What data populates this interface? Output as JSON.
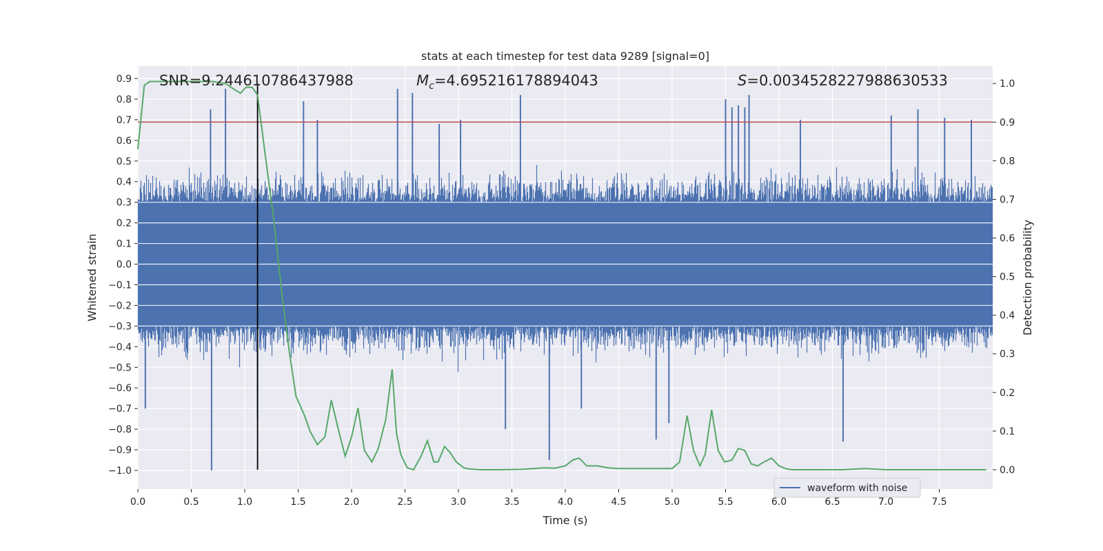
{
  "chart_data": {
    "type": "line",
    "title": "stats at each timestep for test data 9289 [signal=0]",
    "xlabel": "Time (s)",
    "ylabel_left": "Whitened strain",
    "ylabel_right": "Detection probability",
    "xlim": [
      0.0,
      8.0
    ],
    "ylim_left": [
      -1.09,
      0.96
    ],
    "ylim_right": [
      -0.05,
      1.045
    ],
    "x_ticks": [
      "0.0",
      "0.5",
      "1.0",
      "1.5",
      "2.0",
      "2.5",
      "3.0",
      "3.5",
      "4.0",
      "4.5",
      "5.0",
      "5.5",
      "6.0",
      "6.5",
      "7.0",
      "7.5"
    ],
    "y_left_ticks": [
      "0.9",
      "0.8",
      "0.7",
      "0.6",
      "0.5",
      "0.4",
      "0.3",
      "0.2",
      "0.1",
      "0.0",
      "−0.1",
      "−0.2",
      "−0.3",
      "−0.4",
      "−0.5",
      "−0.6",
      "−0.7",
      "−0.8",
      "−0.9",
      "−1.0"
    ],
    "y_right_ticks": [
      "1.0",
      "0.9",
      "0.8",
      "0.7",
      "0.6",
      "0.5",
      "0.4",
      "0.3",
      "0.2",
      "0.1",
      "0.0"
    ],
    "grid": true,
    "legend": {
      "placement": "bottom-right",
      "entries": [
        "waveform with noise"
      ]
    },
    "annotations": {
      "snr": "SNR=9.244610786437988",
      "mc_symbol": "M",
      "mc_sub": "c",
      "mc_value": "=4.695216178894043",
      "s_symbol": "S",
      "s_value": "=0.0034528227988630533"
    },
    "vline_x": 1.12,
    "threshold_prob": 0.9,
    "colors": {
      "waveform": "#4c72b0",
      "probability": "#55a868",
      "threshold": "#c44e52",
      "vline": "#000000",
      "background": "#eaeaf2",
      "grid": "#ffffff"
    },
    "series": [
      {
        "name": "waveform with noise",
        "axis": "left",
        "style": "dense-noise",
        "core_amplitude": 0.3,
        "typical_max": 0.45,
        "typical_min": -0.45,
        "spikes": [
          [
            0.69,
            -1.0
          ],
          [
            0.07,
            -0.7
          ],
          [
            0.82,
            0.85
          ],
          [
            0.68,
            0.75
          ],
          [
            1.55,
            0.79
          ],
          [
            2.43,
            0.85
          ],
          [
            2.57,
            0.83
          ],
          [
            3.85,
            -0.95
          ],
          [
            3.44,
            -0.8
          ],
          [
            3.58,
            0.82
          ],
          [
            4.85,
            -0.85
          ],
          [
            4.97,
            -0.77
          ],
          [
            5.5,
            0.8
          ],
          [
            5.72,
            0.82
          ],
          [
            6.6,
            -0.86
          ],
          [
            5.62,
            0.77
          ],
          [
            5.68,
            0.76
          ],
          [
            5.56,
            0.76
          ],
          [
            7.3,
            0.75
          ],
          [
            7.55,
            0.71
          ],
          [
            1.12,
            -0.75
          ],
          [
            1.68,
            0.7
          ],
          [
            4.15,
            -0.7
          ],
          [
            2.82,
            0.68
          ],
          [
            3.02,
            0.7
          ],
          [
            6.2,
            0.7
          ],
          [
            7.05,
            0.72
          ],
          [
            7.8,
            0.7
          ]
        ]
      },
      {
        "name": "",
        "axis": "right",
        "x": [
          0.0,
          0.06,
          0.11,
          0.25,
          0.4,
          0.55,
          0.7,
          0.82,
          0.9,
          0.96,
          1.01,
          1.07,
          1.12,
          1.19,
          1.27,
          1.35,
          1.42,
          1.48,
          1.56,
          1.61,
          1.68,
          1.75,
          1.81,
          1.88,
          1.94,
          2.0,
          2.06,
          2.12,
          2.19,
          2.25,
          2.32,
          2.38,
          2.42,
          2.46,
          2.52,
          2.58,
          2.65,
          2.71,
          2.77,
          2.81,
          2.87,
          2.92,
          2.98,
          3.05,
          3.1,
          3.2,
          3.4,
          3.6,
          3.8,
          3.9,
          4.0,
          4.07,
          4.13,
          4.2,
          4.3,
          4.4,
          4.5,
          4.6,
          4.8,
          5.0,
          5.07,
          5.14,
          5.2,
          5.26,
          5.31,
          5.37,
          5.43,
          5.49,
          5.56,
          5.62,
          5.68,
          5.74,
          5.8,
          5.86,
          5.93,
          6.0,
          6.07,
          6.13,
          6.3,
          6.6,
          6.8,
          7.0,
          7.2,
          7.4,
          7.6,
          7.8,
          7.94
        ],
        "y": [
          0.83,
          0.995,
          1.005,
          1.005,
          1.005,
          1.005,
          1.005,
          1.0,
          0.985,
          0.975,
          0.99,
          0.99,
          0.97,
          0.82,
          0.65,
          0.45,
          0.3,
          0.19,
          0.14,
          0.1,
          0.065,
          0.085,
          0.18,
          0.1,
          0.035,
          0.085,
          0.16,
          0.05,
          0.02,
          0.055,
          0.13,
          0.26,
          0.095,
          0.04,
          0.005,
          0.0,
          0.035,
          0.075,
          0.02,
          0.02,
          0.06,
          0.045,
          0.02,
          0.005,
          0.002,
          0.0,
          0.0,
          0.001,
          0.005,
          0.004,
          0.01,
          0.025,
          0.03,
          0.01,
          0.01,
          0.005,
          0.003,
          0.003,
          0.003,
          0.003,
          0.02,
          0.14,
          0.05,
          0.01,
          0.04,
          0.155,
          0.05,
          0.02,
          0.025,
          0.055,
          0.05,
          0.015,
          0.01,
          0.02,
          0.03,
          0.01,
          0.002,
          0.0,
          0.0,
          0.0,
          0.003,
          0.0,
          0.0,
          0.0,
          0.0,
          0.0,
          0.0
        ]
      }
    ]
  }
}
